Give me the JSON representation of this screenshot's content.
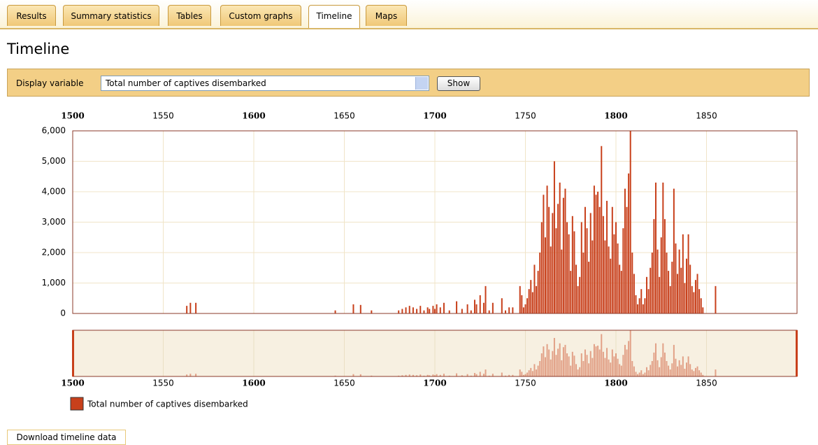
{
  "tabs": [
    {
      "label": "Results"
    },
    {
      "label": "Summary statistics"
    },
    {
      "label": "Tables"
    },
    {
      "label": "Custom graphs"
    },
    {
      "label": "Timeline",
      "active": true
    },
    {
      "label": "Maps"
    }
  ],
  "heading": "Timeline",
  "controls": {
    "label": "Display variable",
    "select": "Total number of captives disembarked",
    "button": "Show"
  },
  "chart_data": {
    "type": "bar",
    "xlim": [
      1500,
      1900
    ],
    "xticks": [
      1500,
      1550,
      1600,
      1650,
      1700,
      1750,
      1800,
      1850
    ],
    "ylim": [
      0,
      6000
    ],
    "yticks": [
      0,
      {
        "value": 1000,
        "label": "1,000"
      },
      {
        "value": 2000,
        "label": "2,000"
      },
      {
        "value": 3000,
        "label": "3,000"
      },
      {
        "value": 4000,
        "label": "4,000"
      },
      {
        "value": 5000,
        "label": "5,000"
      },
      {
        "value": 6000,
        "label": "6,000"
      }
    ],
    "grid": true,
    "series": [
      {
        "name": "Total number of captives disembarked",
        "color": "#c8401b",
        "x": [
          1563,
          1565,
          1568,
          1645,
          1655,
          1659,
          1665,
          1680,
          1682,
          1684,
          1686,
          1688,
          1690,
          1692,
          1694,
          1696,
          1697,
          1699,
          1700,
          1701,
          1703,
          1705,
          1708,
          1712,
          1715,
          1718,
          1720,
          1722,
          1723,
          1725,
          1727,
          1728,
          1730,
          1732,
          1737,
          1739,
          1741,
          1743,
          1747,
          1748,
          1749,
          1750,
          1751,
          1752,
          1753,
          1754,
          1755,
          1756,
          1757,
          1758,
          1759,
          1760,
          1761,
          1762,
          1763,
          1764,
          1765,
          1766,
          1767,
          1768,
          1769,
          1770,
          1771,
          1772,
          1773,
          1774,
          1775,
          1776,
          1777,
          1778,
          1779,
          1780,
          1781,
          1782,
          1783,
          1784,
          1785,
          1786,
          1787,
          1788,
          1789,
          1790,
          1791,
          1792,
          1793,
          1794,
          1795,
          1796,
          1797,
          1798,
          1799,
          1800,
          1801,
          1802,
          1803,
          1804,
          1805,
          1806,
          1807,
          1808,
          1809,
          1810,
          1811,
          1812,
          1813,
          1814,
          1815,
          1816,
          1817,
          1818,
          1819,
          1820,
          1821,
          1822,
          1823,
          1824,
          1825,
          1826,
          1827,
          1828,
          1829,
          1830,
          1831,
          1832,
          1833,
          1834,
          1835,
          1836,
          1837,
          1838,
          1839,
          1840,
          1841,
          1842,
          1843,
          1844,
          1845,
          1846,
          1847,
          1848,
          1855
        ],
        "values": [
          250,
          350,
          350,
          100,
          300,
          280,
          100,
          100,
          150,
          200,
          250,
          200,
          150,
          250,
          100,
          200,
          150,
          250,
          150,
          300,
          200,
          350,
          100,
          400,
          150,
          300,
          100,
          450,
          300,
          600,
          350,
          900,
          100,
          350,
          500,
          100,
          200,
          200,
          900,
          600,
          200,
          300,
          500,
          800,
          1100,
          700,
          1600,
          900,
          1400,
          2000,
          3000,
          3900,
          2500,
          4200,
          3500,
          2200,
          3300,
          5000,
          2800,
          3600,
          4300,
          2100,
          3800,
          4100,
          3000,
          2600,
          1400,
          3200,
          2700,
          1600,
          900,
          1200,
          3000,
          2000,
          3500,
          2800,
          1700,
          3300,
          2400,
          4200,
          3900,
          4000,
          3500,
          5500,
          3200,
          2400,
          3700,
          2200,
          1800,
          3500,
          2600,
          3000,
          2300,
          1600,
          1400,
          2800,
          4100,
          3500,
          4600,
          6000,
          2000,
          1300,
          600,
          300,
          500,
          800,
          300,
          500,
          1200,
          800,
          1500,
          2000,
          3100,
          4300,
          2100,
          1200,
          2500,
          4300,
          3100,
          2000,
          1400,
          900,
          1700,
          4100,
          2300,
          1300,
          2100,
          1500,
          2600,
          1000,
          1800,
          2600,
          1600,
          900,
          700,
          1100,
          1300,
          800,
          500,
          200,
          900
        ]
      }
    ]
  },
  "download": "Download timeline data"
}
